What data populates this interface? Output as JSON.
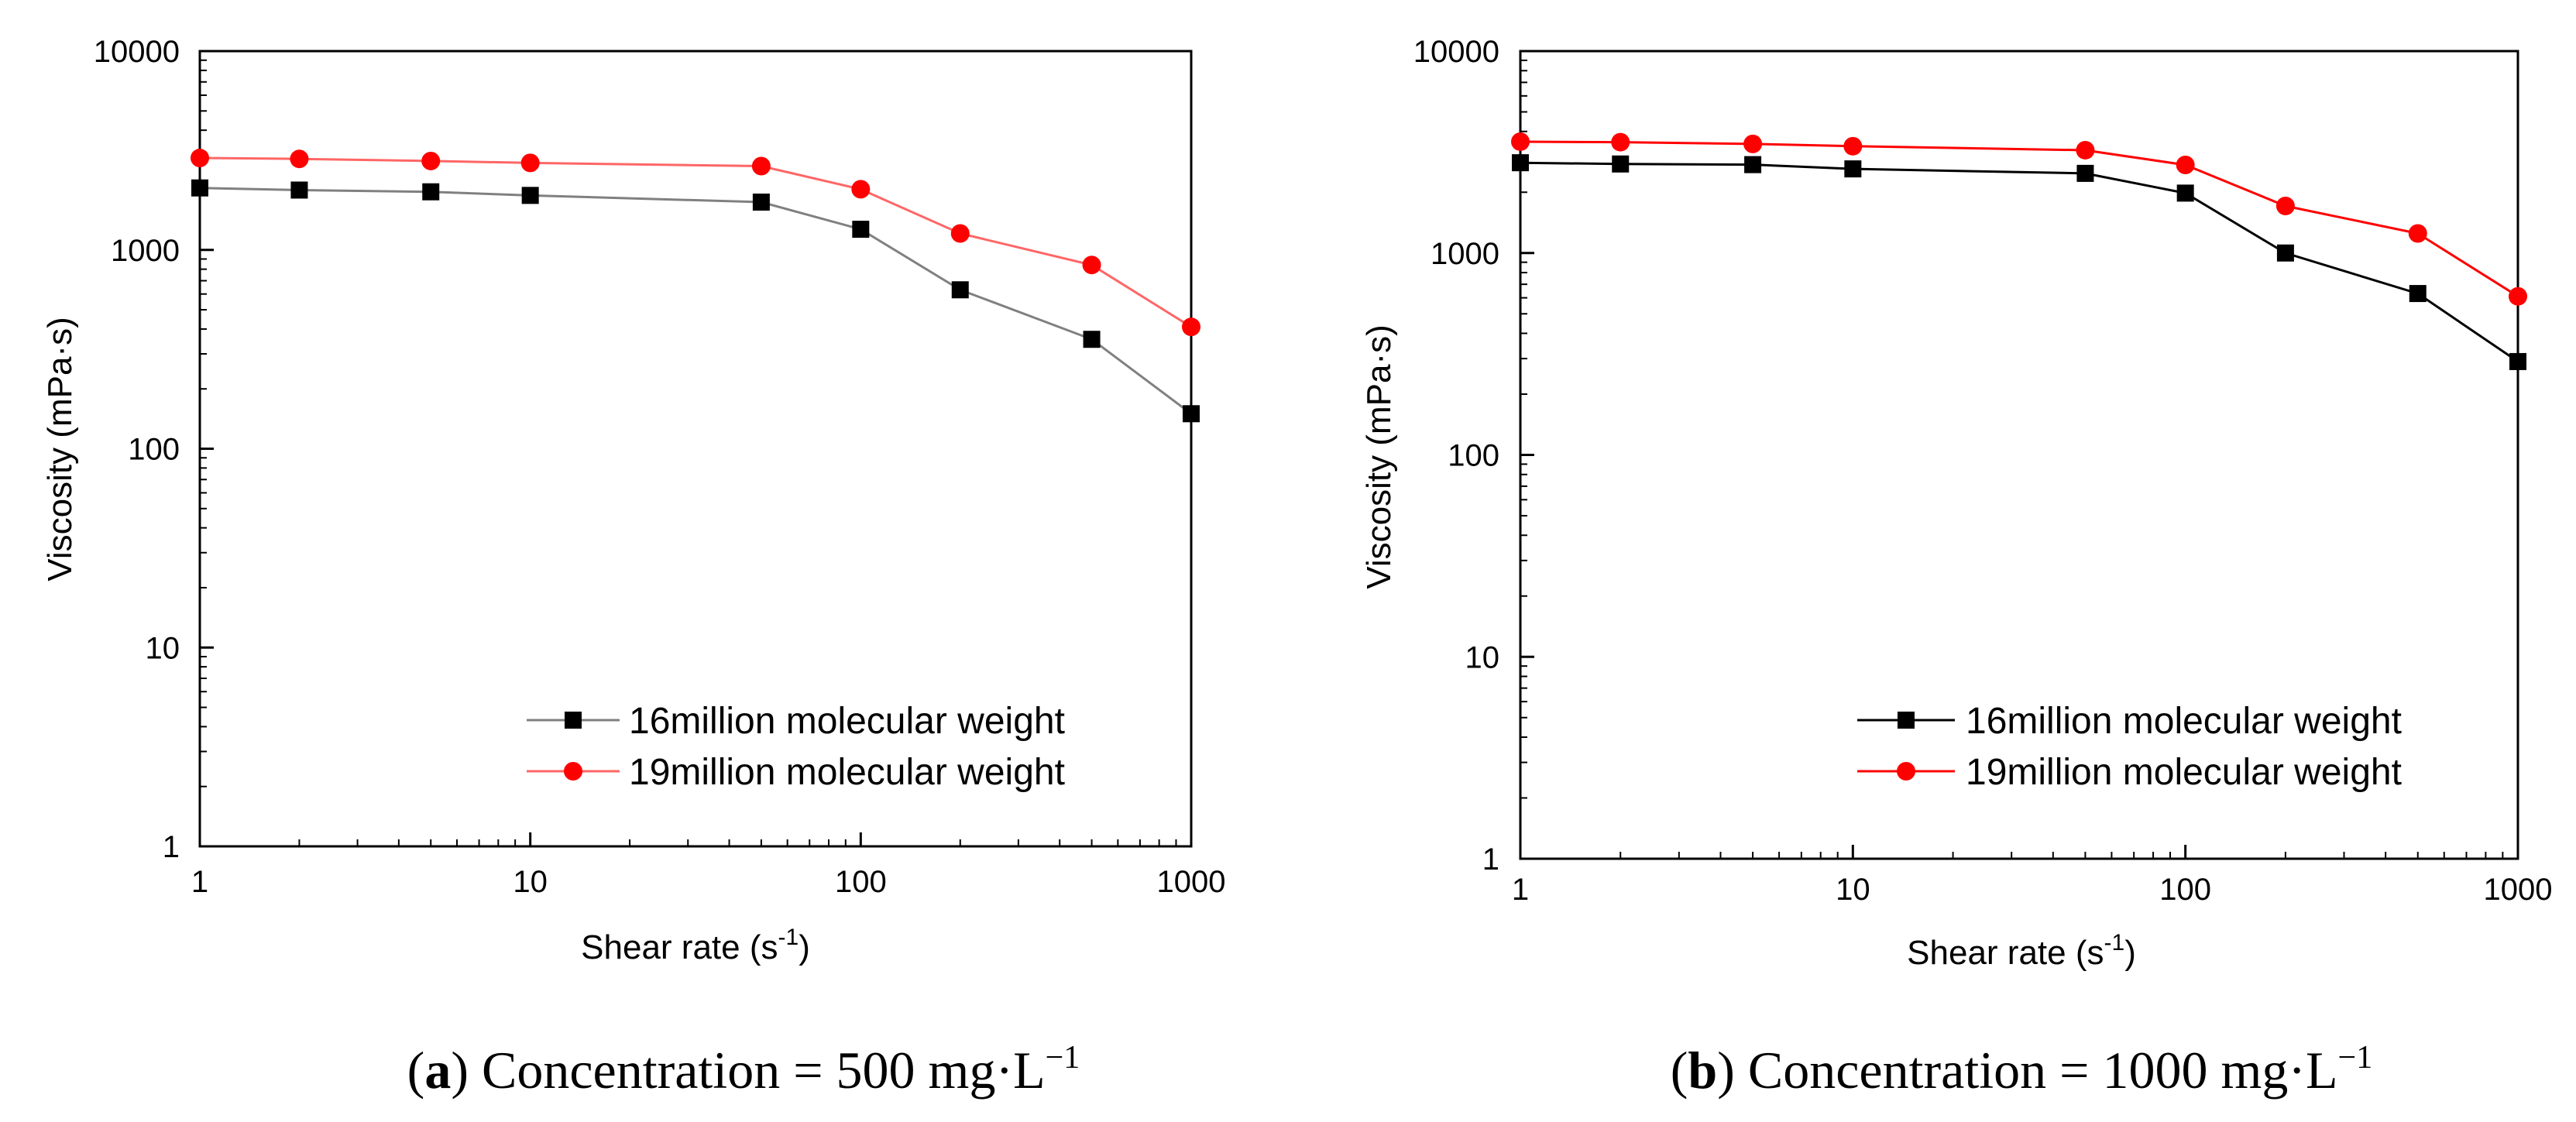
{
  "chart_data": [
    {
      "type": "line",
      "panel": "a",
      "x_scale": "log",
      "y_scale": "log",
      "xlabel": "Shear rate (s",
      "xlabel_sup": "-1",
      "xlabel_end": ")",
      "ylabel": "Viscosity (mPa·s)",
      "xlim": [
        1,
        1000
      ],
      "ylim": [
        1,
        10000
      ],
      "x_ticks": [
        1,
        10,
        100,
        1000
      ],
      "x_tick_labels": [
        "1",
        "10",
        "100",
        "1000"
      ],
      "y_ticks": [
        1,
        10,
        100,
        1000,
        10000
      ],
      "y_tick_labels": [
        "1",
        "10",
        "100",
        "1000",
        "10000"
      ],
      "legend_position": "lower-right",
      "caption": {
        "letter": "a",
        "text": " Concentration = 500 mg·L",
        "sup": "−1"
      },
      "series": [
        {
          "name": "16million molecular weight",
          "color": "#808080",
          "marker_color": "#000000",
          "marker": "square",
          "x": [
            1,
            2,
            5,
            10,
            50,
            100,
            200,
            500,
            1000
          ],
          "values": [
            2050,
            2000,
            1960,
            1880,
            1740,
            1270,
            630,
            355,
            150
          ]
        },
        {
          "name": "19million molecular weight",
          "color": "#ff6666",
          "marker_color": "#ff0000",
          "marker": "circle",
          "x": [
            1,
            2,
            5,
            10,
            50,
            100,
            200,
            500,
            1000
          ],
          "values": [
            2900,
            2870,
            2800,
            2740,
            2640,
            2020,
            1210,
            840,
            410
          ]
        }
      ]
    },
    {
      "type": "line",
      "panel": "b",
      "x_scale": "log",
      "y_scale": "log",
      "xlabel": "Shear rate (s",
      "xlabel_sup": "-1",
      "xlabel_end": ")",
      "ylabel": "Viscosity (mPa·s)",
      "xlim": [
        1,
        1000
      ],
      "ylim": [
        1,
        10000
      ],
      "x_ticks": [
        1,
        10,
        100,
        1000
      ],
      "x_tick_labels": [
        "1",
        "10",
        "100",
        "1000"
      ],
      "y_ticks": [
        1,
        10,
        100,
        1000,
        10000
      ],
      "y_tick_labels": [
        "1",
        "10",
        "100",
        "1000",
        "10000"
      ],
      "legend_position": "lower-right",
      "caption": {
        "letter": "b",
        "text": " Concentration = 1000 mg·L",
        "sup": "−1"
      },
      "series": [
        {
          "name": "16million molecular weight",
          "color": "#000000",
          "marker_color": "#000000",
          "marker": "square",
          "x": [
            1,
            2,
            5,
            10,
            50,
            100,
            200,
            500,
            1000
          ],
          "values": [
            2800,
            2760,
            2740,
            2610,
            2480,
            1980,
            1000,
            630,
            290
          ]
        },
        {
          "name": "19million molecular weight",
          "color": "#ff0000",
          "marker_color": "#ff0000",
          "marker": "circle",
          "x": [
            1,
            2,
            5,
            10,
            50,
            100,
            200,
            500,
            1000
          ],
          "values": [
            3560,
            3540,
            3470,
            3380,
            3230,
            2730,
            1710,
            1250,
            610
          ]
        }
      ]
    }
  ]
}
